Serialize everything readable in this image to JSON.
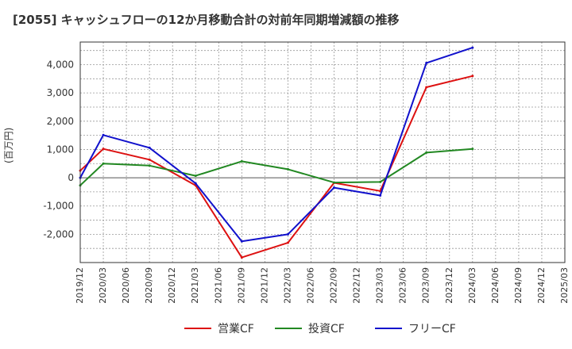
{
  "chart_data": {
    "type": "line",
    "title": "[2055]  キャッシュフローの12か月移動合計の対前年同期増減額の推移",
    "ylabel": "(百万円)",
    "xlabel": "",
    "x": [
      "2019/12",
      "2020/03",
      "2020/06",
      "2020/09",
      "2020/12",
      "2021/03",
      "2021/06",
      "2021/09",
      "2021/12",
      "2022/03",
      "2022/06",
      "2022/09",
      "2022/12",
      "2023/03",
      "2023/06",
      "2023/09",
      "2023/12",
      "2024/03",
      "2024/06",
      "2024/09",
      "2024/12",
      "2025/03"
    ],
    "ylim": [
      -3000,
      4800
    ],
    "yticks": [
      -2000,
      -1000,
      0,
      1000,
      2000,
      3000,
      4000
    ],
    "ytick_labels": [
      "-2,000",
      "-1,000",
      "0",
      "1,000",
      "2,000",
      "3,000",
      "4,000"
    ],
    "grid": true,
    "legend_position": "bottom",
    "series": [
      {
        "name": "営業CF",
        "color": "#dd1111",
        "values": [
          250,
          1020,
          null,
          640,
          null,
          -270,
          null,
          -2820,
          null,
          -2300,
          null,
          -180,
          null,
          -470,
          null,
          3200,
          null,
          3600,
          null,
          null,
          null,
          null
        ]
      },
      {
        "name": "投資CF",
        "color": "#228822",
        "values": [
          -270,
          500,
          null,
          430,
          null,
          70,
          null,
          580,
          null,
          300,
          null,
          -170,
          null,
          -150,
          null,
          890,
          null,
          1020,
          null,
          null,
          null,
          null
        ]
      },
      {
        "name": "フリーCF",
        "color": "#1111cc",
        "values": [
          0,
          1510,
          null,
          1060,
          null,
          -200,
          null,
          -2250,
          null,
          -2000,
          null,
          -350,
          null,
          -630,
          null,
          4060,
          null,
          4600,
          null,
          null,
          null,
          null
        ]
      }
    ]
  }
}
